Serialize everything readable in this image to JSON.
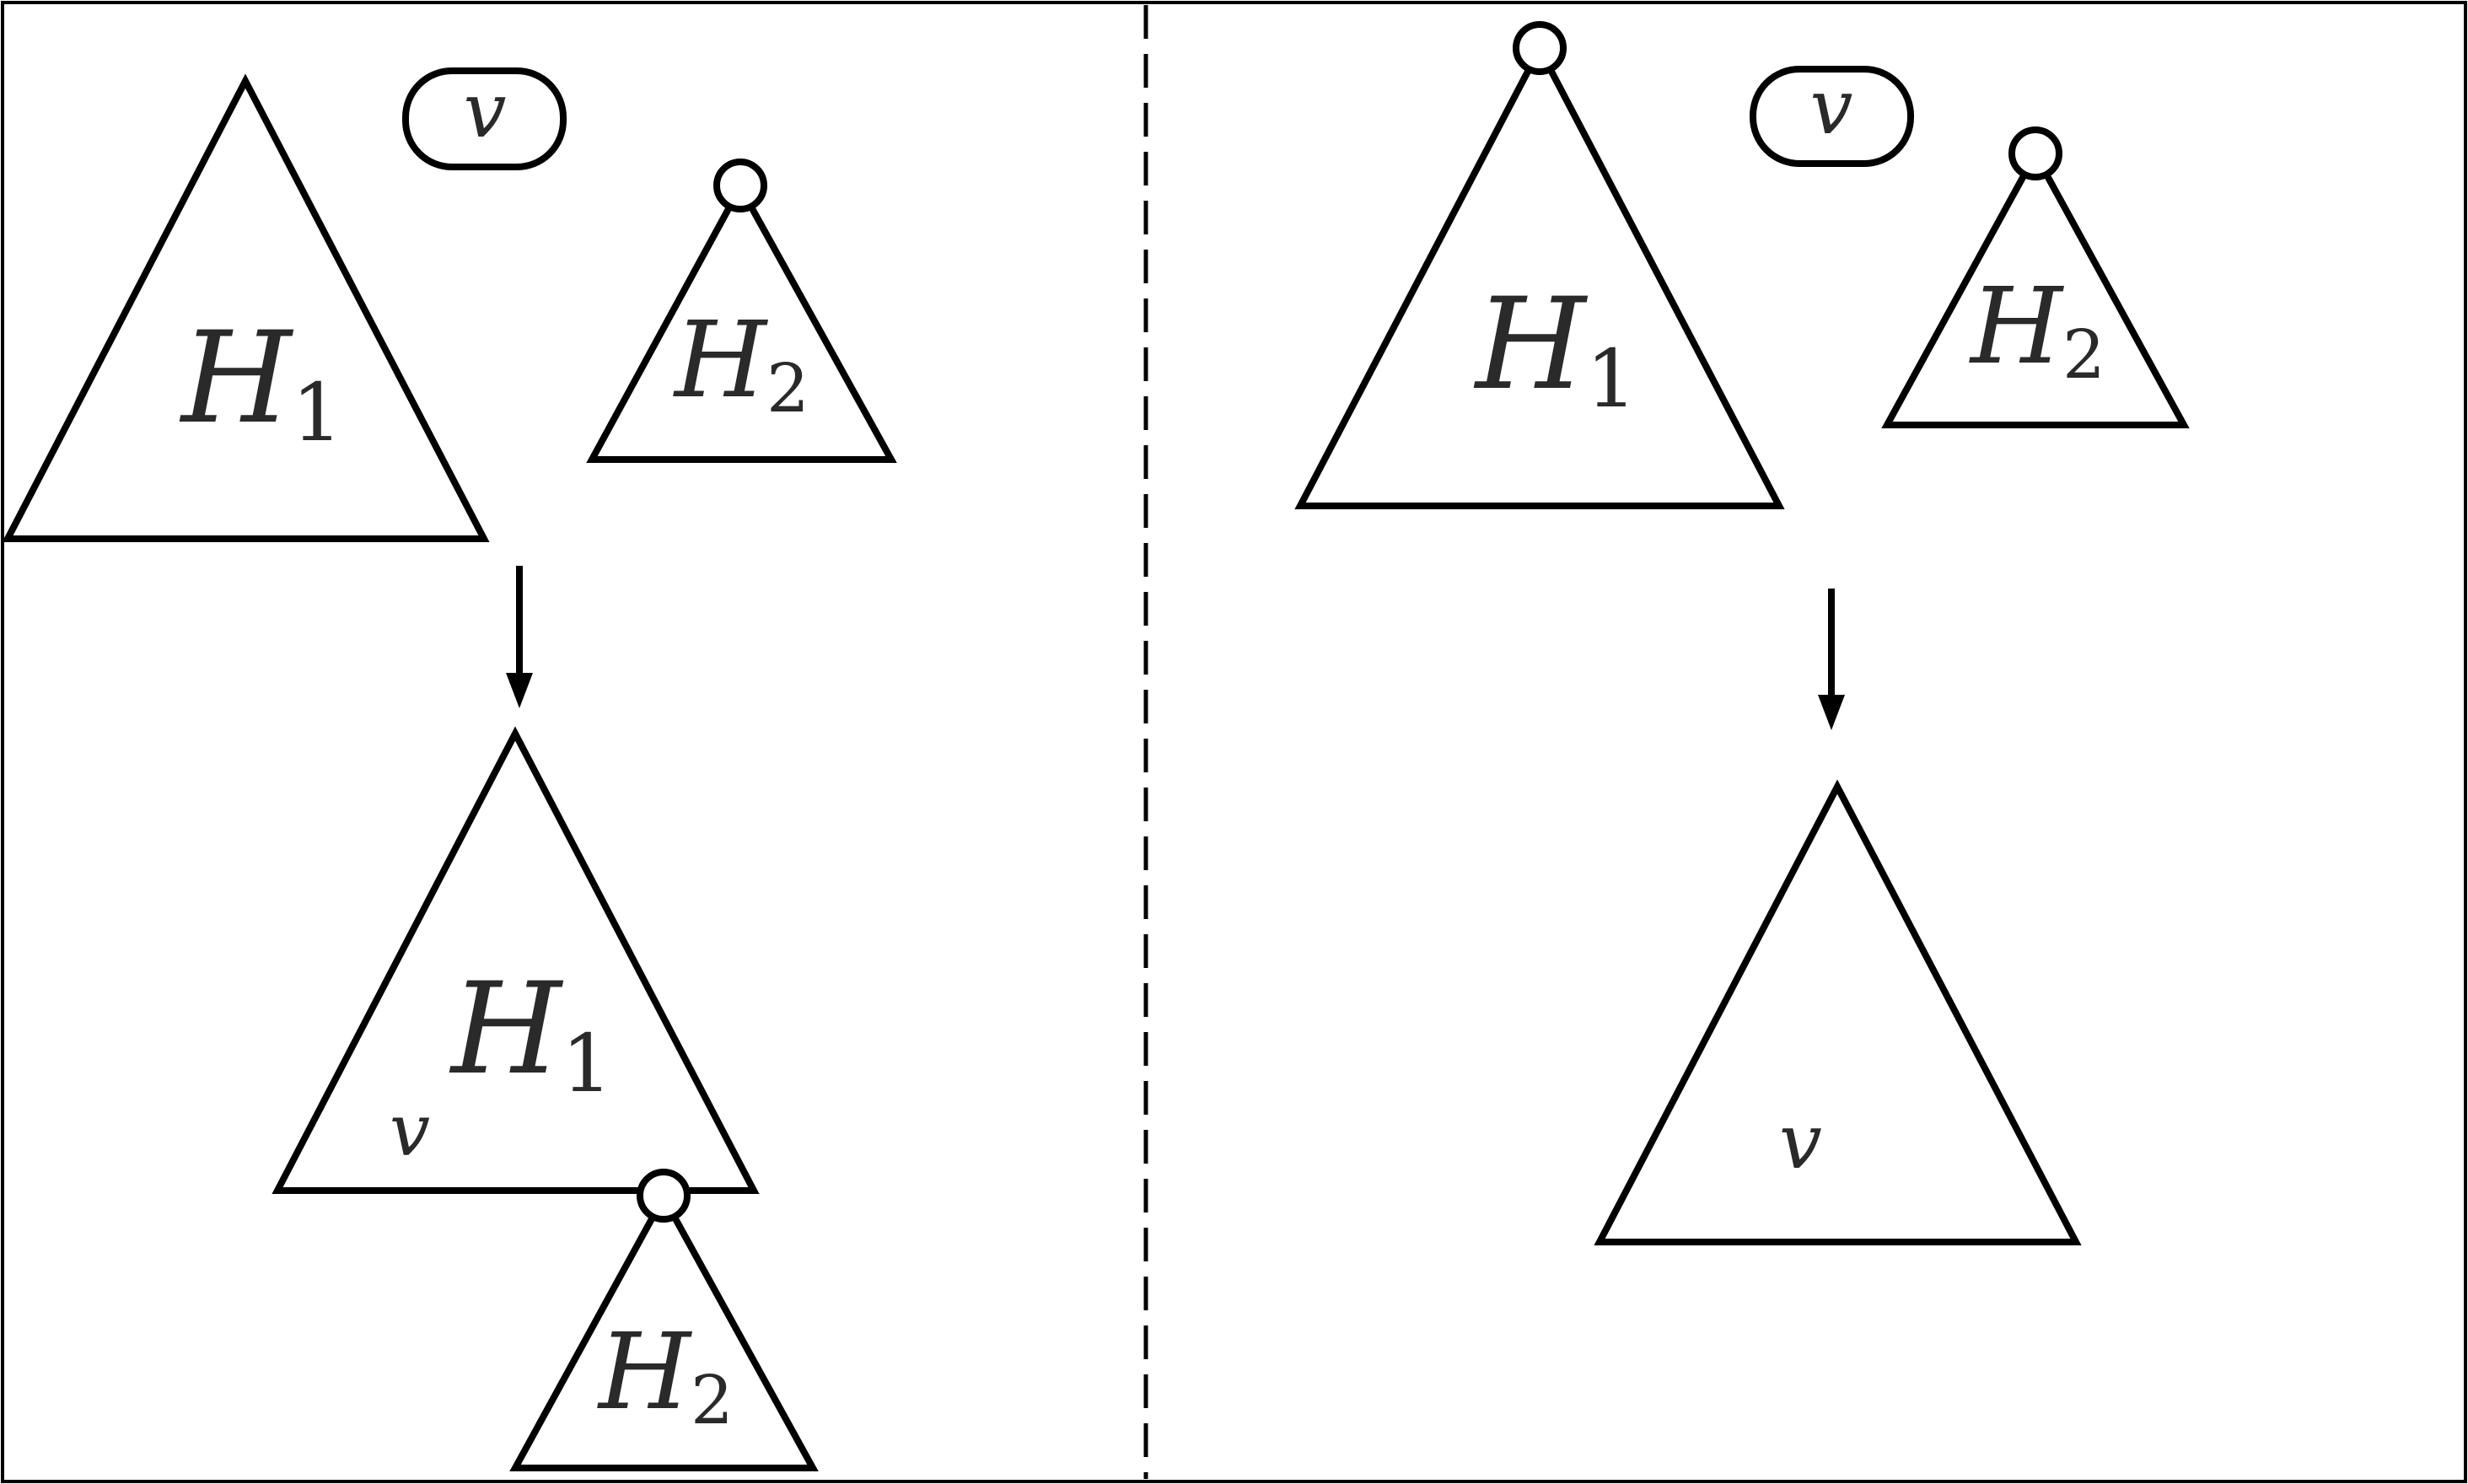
{
  "figure": {
    "left_panel": {
      "before": {
        "tree_h1": {
          "symbol": "H",
          "index": "1"
        },
        "tree_h2": {
          "symbol": "H",
          "index": "2"
        },
        "vertex_label": "v"
      },
      "after": {
        "tree_h1": {
          "symbol": "H",
          "index": "1"
        },
        "tree_h2": {
          "symbol": "H",
          "index": "2"
        },
        "vertex_label": "v"
      }
    },
    "right_panel": {
      "before": {
        "tree_h1": {
          "symbol": "H",
          "index": "1"
        },
        "tree_h2": {
          "symbol": "H",
          "index": "2"
        },
        "vertex_label": "v"
      },
      "after": {
        "vertex_label": "v"
      }
    }
  }
}
